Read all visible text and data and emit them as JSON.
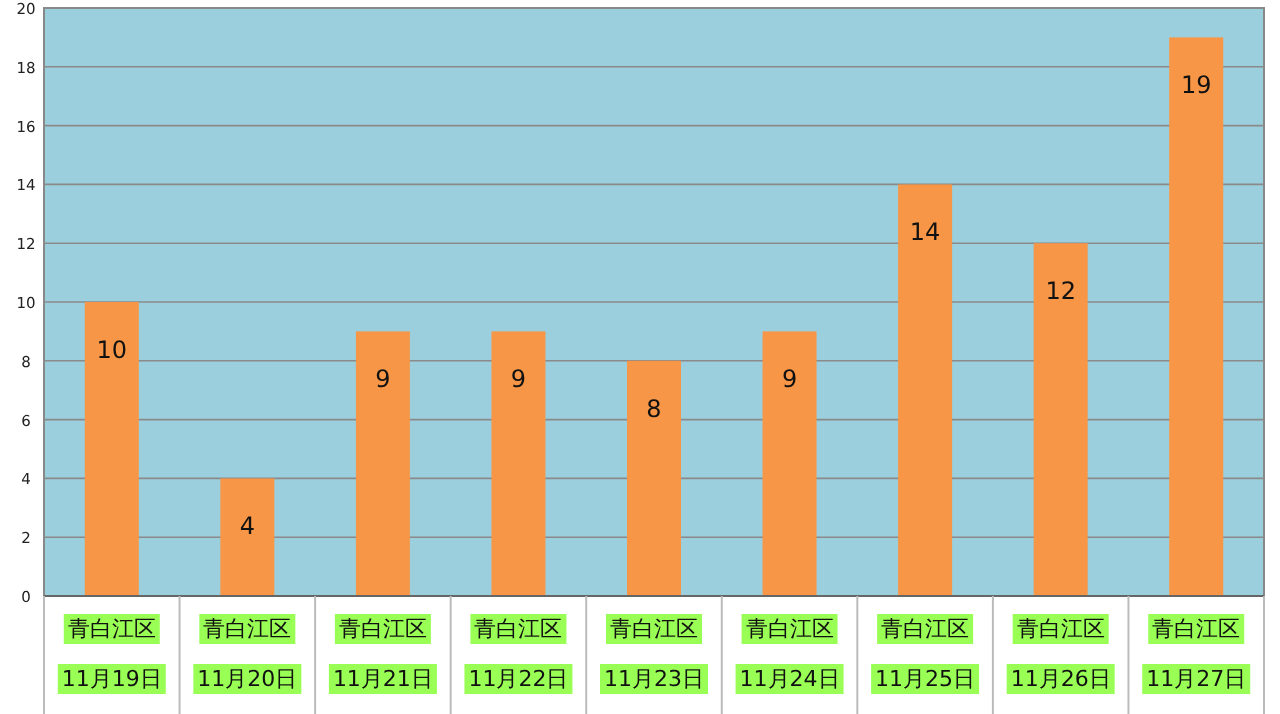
{
  "chart_data": {
    "type": "bar",
    "categories": [
      "青白江区 11月19日",
      "青白江区 11月20日",
      "青白江区 11月21日",
      "青白江区 11月22日",
      "青白江区 11月23日",
      "青白江区 11月24日",
      "青白江区 11月25日",
      "青白江区 11月26日",
      "青白江区 11月27日"
    ],
    "values": [
      10,
      4,
      9,
      9,
      8,
      9,
      14,
      12,
      19
    ],
    "color": "#f79646",
    "ylim": [
      0,
      20
    ],
    "yticks": [
      0,
      2,
      4,
      6,
      8,
      10,
      12,
      14,
      16,
      18,
      20
    ],
    "grid": "y",
    "data_labels": true
  }
}
